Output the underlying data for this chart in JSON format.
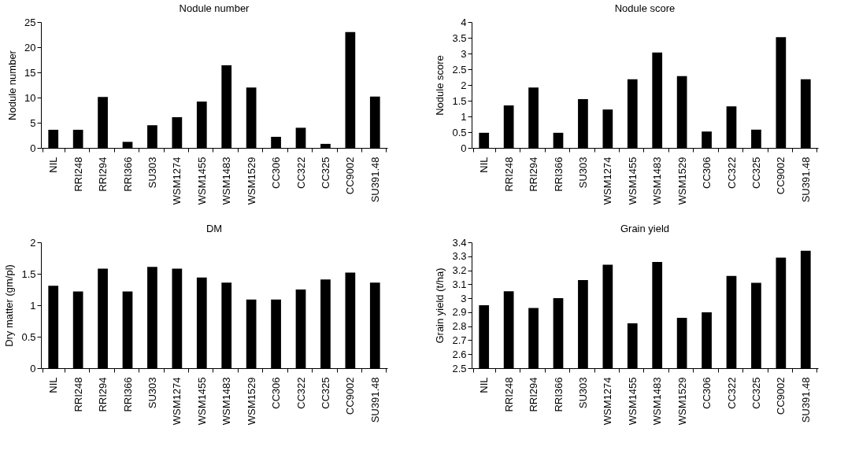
{
  "chart_data": [
    {
      "type": "bar",
      "title": "Nodule number",
      "ylabel": "Nodule number",
      "categories": [
        "NIL",
        "RRI248",
        "RRI294",
        "RRI366",
        "SU303",
        "WSM1274",
        "WSM1455",
        "WSM1483",
        "WSM1529",
        "CC306",
        "CC322",
        "CC325",
        "CC9002",
        "SU391.48"
      ],
      "values": [
        3.6,
        3.6,
        10.1,
        1.2,
        4.5,
        6.1,
        9.2,
        16.4,
        12.0,
        2.2,
        4.0,
        0.8,
        23.0,
        10.2
      ],
      "color": "#000000",
      "ylim": [
        0,
        25
      ],
      "yticks": [
        0,
        5,
        10,
        15,
        20,
        25
      ],
      "grid": false
    },
    {
      "type": "bar",
      "title": "Nodule score",
      "ylabel": "Nodule score",
      "categories": [
        "NIL",
        "RRI248",
        "RRI294",
        "RRI366",
        "SU303",
        "WSM1274",
        "WSM1455",
        "WSM1483",
        "WSM1529",
        "CC306",
        "CC322",
        "CC325",
        "CC9002",
        "SU391.48"
      ],
      "values": [
        0.48,
        1.35,
        1.92,
        0.48,
        1.55,
        1.22,
        2.18,
        3.03,
        2.28,
        0.52,
        1.32,
        0.58,
        3.52,
        2.18
      ],
      "color": "#000000",
      "ylim": [
        0,
        4
      ],
      "yticks": [
        0,
        0.5,
        1,
        1.5,
        2,
        2.5,
        3,
        3.5,
        4
      ],
      "grid": false
    },
    {
      "type": "bar",
      "title": "DM",
      "ylabel": "Dry matter (gm/pl)",
      "categories": [
        "NIL",
        "RRI248",
        "RRI294",
        "RRI366",
        "SU303",
        "WSM1274",
        "WSM1455",
        "WSM1483",
        "WSM1529",
        "CC306",
        "CC322",
        "CC325",
        "CC9002",
        "SU391.48"
      ],
      "values": [
        1.31,
        1.22,
        1.58,
        1.22,
        1.61,
        1.58,
        1.44,
        1.36,
        1.09,
        1.09,
        1.25,
        1.41,
        1.52,
        1.36
      ],
      "color": "#000000",
      "ylim": [
        0,
        2
      ],
      "yticks": [
        0,
        0.5,
        1,
        1.5,
        2
      ],
      "grid": false
    },
    {
      "type": "bar",
      "title": "Grain yield",
      "ylabel": "Grain yield (t/ha)",
      "categories": [
        "NIL",
        "RRI248",
        "RRI294",
        "RRI366",
        "SU303",
        "WSM1274",
        "WSM1455",
        "WSM1483",
        "WSM1529",
        "CC306",
        "CC322",
        "CC325",
        "CC9002",
        "SU391.48"
      ],
      "values": [
        2.95,
        3.05,
        2.93,
        3.0,
        3.13,
        3.24,
        2.82,
        3.26,
        2.86,
        2.9,
        3.16,
        3.11,
        3.29,
        3.34
      ],
      "color": "#000000",
      "ylim": [
        2.5,
        3.4
      ],
      "yticks": [
        2.5,
        2.6,
        2.7,
        2.8,
        2.9,
        3,
        3.1,
        3.2,
        3.3,
        3.4
      ],
      "grid": false
    }
  ]
}
